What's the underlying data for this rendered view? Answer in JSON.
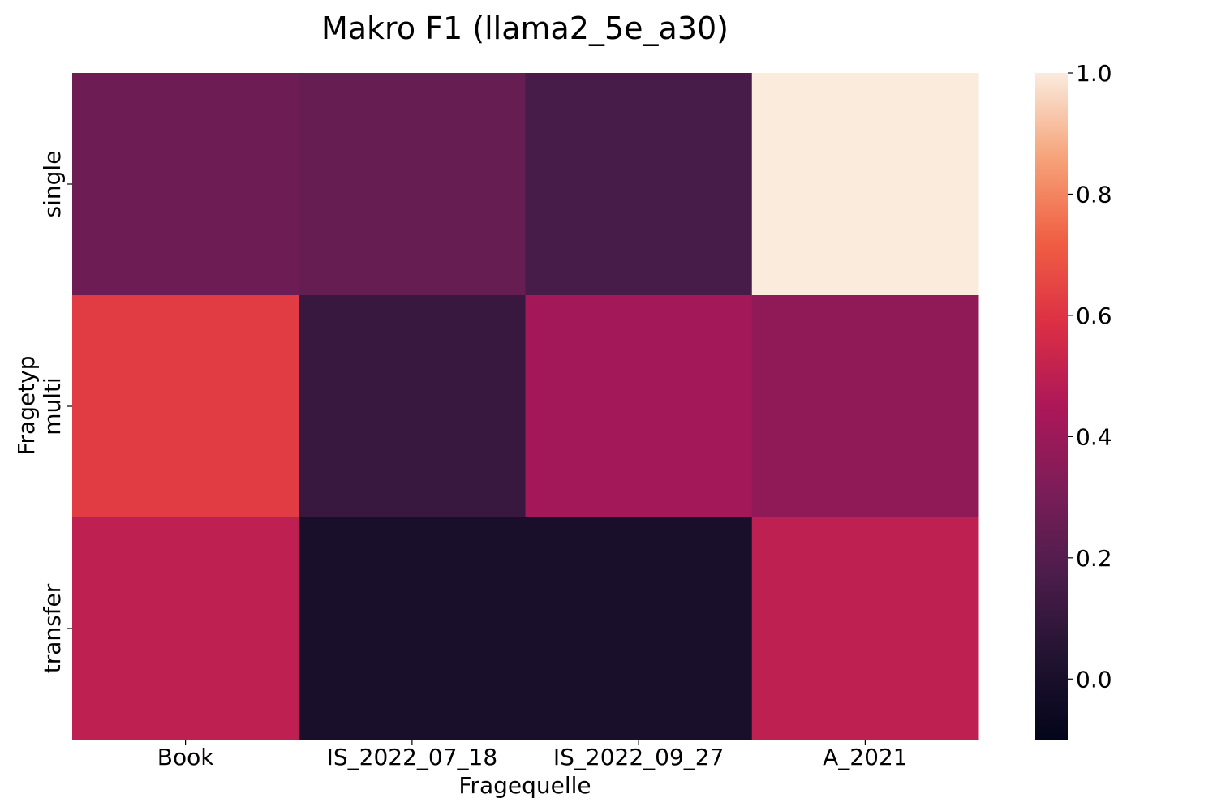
{
  "chart_data": {
    "type": "heatmap",
    "title": "Makro F1 (llama2_5e_a30)",
    "xlabel": "Fragequelle",
    "ylabel": "Fragetyp",
    "x_categories": [
      "Book",
      "IS_2022_07_18",
      "IS_2022_09_27",
      "A_2021"
    ],
    "y_categories": [
      "single",
      "multi",
      "transfer"
    ],
    "values": [
      [
        0.27,
        0.25,
        0.16,
        1.0
      ],
      [
        0.62,
        0.11,
        0.42,
        0.37
      ],
      [
        0.5,
        0.0,
        0.0,
        0.5
      ]
    ],
    "colorbar": {
      "vmin": -0.1,
      "vmax": 1.0,
      "ticks": [
        0.0,
        0.2,
        0.4,
        0.6,
        0.8,
        1.0
      ],
      "tick_labels": [
        "0.0",
        "0.2",
        "0.4",
        "0.6",
        "0.8",
        "1.0"
      ]
    },
    "colormap": "rocket",
    "colormap_stops": [
      "#03051a",
      "#221331",
      "#4c1d4b",
      "#7c1d58",
      "#ad1759",
      "#dc2f44",
      "#f06043",
      "#f6a47b",
      "#faebdd"
    ]
  }
}
